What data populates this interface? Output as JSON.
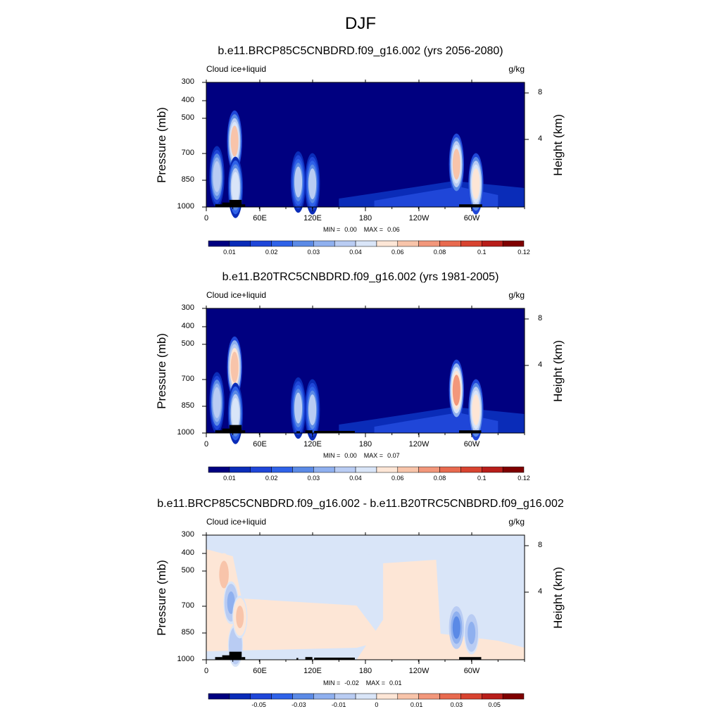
{
  "figure": {
    "title": "DJF"
  },
  "chart_data": [
    {
      "type": "heatmap",
      "title": "b.e11.BRCP85C5CNBDRD.f09_g16.002 (yrs 2056-2080)",
      "left_label": "Cloud ice+liquid",
      "right_label": "g/kg",
      "ylabel": "Pressure (mb)",
      "ylabel_right": "Height (km)",
      "x_ticks": [
        "0",
        "60E",
        "120E",
        "180",
        "120W",
        "60W"
      ],
      "y_ticks": [
        "300",
        "400",
        "500",
        "700",
        "850",
        "1000"
      ],
      "y_right_ticks": [
        "8",
        "4"
      ],
      "min_label": "MIN =",
      "min_value": "0.00",
      "max_label": "MAX =",
      "max_value": "0.06",
      "colorbar_labels": [
        "0.01",
        "0.02",
        "0.03",
        "0.04",
        "0.06",
        "0.08",
        "0.1",
        "0.12"
      ],
      "background_value": 0.0,
      "cloud_features": [
        {
          "lon": 12,
          "p": 830,
          "amp": 0.035
        },
        {
          "lon": 32,
          "p": 630,
          "amp": 0.06
        },
        {
          "lon": 33,
          "p": 890,
          "amp": 0.04
        },
        {
          "lon": 104,
          "p": 860,
          "amp": 0.03
        },
        {
          "lon": 120,
          "p": 870,
          "amp": 0.03
        },
        {
          "lon": 283,
          "p": 760,
          "amp": 0.06
        },
        {
          "lon": 305,
          "p": 870,
          "amp": 0.055
        }
      ]
    },
    {
      "type": "heatmap",
      "title": "b.e11.B20TRC5CNBDRD.f09_g16.002 (yrs 1981-2005)",
      "left_label": "Cloud ice+liquid",
      "right_label": "g/kg",
      "ylabel": "Pressure (mb)",
      "ylabel_right": "Height (km)",
      "x_ticks": [
        "0",
        "60E",
        "120E",
        "180",
        "120W",
        "60W"
      ],
      "y_ticks": [
        "300",
        "400",
        "500",
        "700",
        "850",
        "1000"
      ],
      "y_right_ticks": [
        "8",
        "4"
      ],
      "min_label": "MIN =",
      "min_value": "0.00",
      "max_label": "MAX =",
      "max_value": "0.07",
      "colorbar_labels": [
        "0.01",
        "0.02",
        "0.03",
        "0.04",
        "0.06",
        "0.08",
        "0.1",
        "0.12"
      ],
      "background_value": 0.0,
      "cloud_features": [
        {
          "lon": 12,
          "p": 830,
          "amp": 0.035
        },
        {
          "lon": 32,
          "p": 630,
          "amp": 0.065
        },
        {
          "lon": 33,
          "p": 890,
          "amp": 0.04
        },
        {
          "lon": 104,
          "p": 860,
          "amp": 0.03
        },
        {
          "lon": 120,
          "p": 870,
          "amp": 0.03
        },
        {
          "lon": 283,
          "p": 760,
          "amp": 0.07
        },
        {
          "lon": 305,
          "p": 870,
          "amp": 0.055
        }
      ]
    },
    {
      "type": "heatmap",
      "title": "b.e11.BRCP85C5CNBDRD.f09_g16.002 - b.e11.B20TRC5CNBDRD.f09_g16.002",
      "left_label": "Cloud ice+liquid",
      "right_label": "g/kg",
      "ylabel": "Pressure (mb)",
      "ylabel_right": "Height (km)",
      "x_ticks": [
        "0",
        "60E",
        "120E",
        "180",
        "120W",
        "60W"
      ],
      "y_ticks": [
        "300",
        "400",
        "500",
        "700",
        "850",
        "1000"
      ],
      "y_right_ticks": [
        "8",
        "4"
      ],
      "min_label": "MIN =",
      "min_value": "-0.02",
      "max_label": "MAX =",
      "max_value": "0.01",
      "colorbar_labels": [
        "-0.05",
        "-0.03",
        "-0.01",
        "0",
        "0.01",
        "0.03",
        "0.05"
      ],
      "background_value": -0.002,
      "cloud_features": [
        {
          "lon": 20,
          "p": 520,
          "amp": 0.008
        },
        {
          "lon": 28,
          "p": 680,
          "amp": -0.012
        },
        {
          "lon": 33,
          "p": 920,
          "amp": -0.01
        },
        {
          "lon": 38,
          "p": 760,
          "amp": 0.006
        },
        {
          "lon": 283,
          "p": 820,
          "amp": -0.02
        },
        {
          "lon": 300,
          "p": 850,
          "amp": -0.012
        }
      ]
    }
  ],
  "colors": {
    "palette": [
      "#000080",
      "#0a2cb8",
      "#1f46d8",
      "#2f62e8",
      "#5b8ae6",
      "#8fb0ef",
      "#b9ccf3",
      "#d9e5f8",
      "#fde6d6",
      "#f8c4aa",
      "#f2977b",
      "#e86a4f",
      "#d84330",
      "#b81e1a",
      "#7f0000"
    ],
    "terrain": "#000000"
  }
}
